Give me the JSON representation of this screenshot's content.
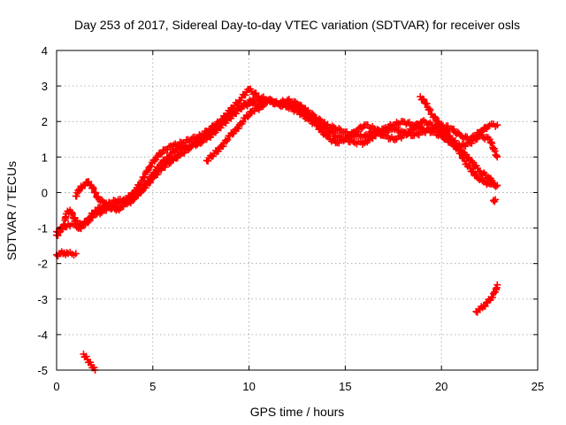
{
  "chart_data": {
    "type": "scatter",
    "title": "Day 253 of 2017, Sidereal Day-to-day VTEC variation (SDTVAR) for receiver osls",
    "xlabel": "GPS time / hours",
    "ylabel": "SDTVAR / TECUs",
    "xlim": [
      0,
      25
    ],
    "ylim": [
      -5,
      4
    ],
    "xticks": [
      "0",
      "5",
      "10",
      "15",
      "20",
      "25"
    ],
    "yticks": [
      "-5",
      "-4",
      "-3",
      "-2",
      "-1",
      "0",
      "1",
      "2",
      "3",
      "4"
    ],
    "grid": true,
    "marker": "+",
    "color": "#ff0000",
    "series": [
      {
        "name": "track-a",
        "x": [
          0.0,
          0.2,
          0.4,
          0.5,
          0.7,
          1.0,
          1.3,
          1.6,
          2.0,
          2.4,
          2.8,
          3.2,
          3.6,
          4.0,
          4.4,
          4.8,
          5.2,
          5.6,
          6.0,
          6.5,
          7.0,
          7.5,
          8.0,
          8.5,
          9.0,
          9.5,
          10.0,
          10.5,
          11.0,
          11.5,
          12.0,
          12.5,
          13.0,
          13.5,
          14.0,
          14.5,
          15.0,
          15.5,
          16.0,
          16.5,
          17.0,
          17.5,
          18.0,
          18.5,
          19.0,
          19.5,
          20.0,
          20.5,
          21.0,
          21.5,
          22.0,
          22.5,
          22.8
        ],
        "y": [
          -1.2,
          -1.1,
          -0.9,
          -0.6,
          -0.5,
          -0.8,
          -0.9,
          -0.8,
          -0.5,
          -0.4,
          -0.3,
          -0.2,
          -0.2,
          0.0,
          0.3,
          0.7,
          1.0,
          1.2,
          1.3,
          1.4,
          1.5,
          1.6,
          1.8,
          2.0,
          2.3,
          2.6,
          2.9,
          2.7,
          2.6,
          2.5,
          2.6,
          2.5,
          2.3,
          2.1,
          1.9,
          1.8,
          1.7,
          1.6,
          1.6,
          1.7,
          1.8,
          1.9,
          2.0,
          1.9,
          1.8,
          1.7,
          1.6,
          1.4,
          1.2,
          0.9,
          0.6,
          0.4,
          0.2
        ]
      },
      {
        "name": "track-b",
        "x": [
          0.0,
          0.3,
          0.6,
          0.9,
          1.2,
          1.5,
          1.8,
          2.1,
          2.5,
          2.9,
          3.3,
          3.7,
          4.1,
          4.5,
          5.0,
          5.5,
          6.0,
          6.5,
          7.0,
          7.5,
          8.0,
          8.5,
          9.0,
          9.5,
          10.0,
          10.5,
          11.0,
          11.5,
          12.0,
          12.5,
          13.0,
          13.5,
          14.0,
          14.5,
          15.0,
          15.5,
          16.0,
          16.5,
          17.0,
          17.5,
          18.0,
          18.5,
          19.0,
          19.5,
          20.0,
          20.5,
          21.0,
          21.5,
          22.0,
          22.5,
          22.9
        ],
        "y": [
          -1.1,
          -1.0,
          -0.9,
          -0.9,
          -1.0,
          -0.9,
          -0.7,
          -0.6,
          -0.5,
          -0.4,
          -0.3,
          -0.2,
          -0.1,
          0.1,
          0.4,
          0.7,
          0.9,
          1.1,
          1.3,
          1.5,
          1.7,
          2.0,
          2.2,
          2.4,
          2.5,
          2.5,
          2.6,
          2.5,
          2.5,
          2.4,
          2.2,
          2.0,
          1.8,
          1.6,
          1.5,
          1.4,
          1.4,
          1.6,
          1.7,
          1.8,
          1.7,
          1.6,
          1.7,
          1.8,
          1.9,
          1.8,
          1.6,
          1.5,
          1.7,
          1.9,
          1.9
        ]
      },
      {
        "name": "track-c",
        "x": [
          1.0,
          1.2,
          1.4,
          1.6,
          1.8,
          2.0,
          2.2,
          2.5,
          2.8,
          3.1,
          3.4,
          3.7,
          4.0,
          4.3,
          4.6,
          5.0,
          5.4,
          5.8,
          6.2,
          6.6,
          7.0,
          7.4,
          7.8,
          8.2,
          8.6,
          9.0,
          9.4,
          9.8,
          10.2,
          10.6
        ],
        "y": [
          -0.1,
          0.1,
          0.2,
          0.3,
          0.2,
          0.0,
          -0.2,
          -0.3,
          -0.4,
          -0.5,
          -0.4,
          -0.3,
          -0.2,
          0.0,
          0.2,
          0.5,
          0.8,
          1.0,
          1.2,
          1.3,
          1.3,
          1.4,
          1.5,
          1.7,
          1.9,
          2.1,
          2.3,
          2.5,
          2.6,
          2.6
        ]
      },
      {
        "name": "track-d",
        "x": [
          7.8,
          8.2,
          8.6,
          9.0,
          9.4,
          9.8,
          10.2,
          10.6,
          11.0,
          11.5,
          12.0,
          12.5,
          13.0,
          13.5,
          14.0,
          14.5,
          15.0,
          15.5,
          16.0,
          16.5,
          17.0,
          17.5,
          18.0,
          18.5,
          19.0,
          19.5,
          20.0,
          20.5,
          21.0,
          21.5,
          22.0,
          22.5,
          22.9
        ],
        "y": [
          0.9,
          1.1,
          1.3,
          1.6,
          1.8,
          2.1,
          2.3,
          2.4,
          2.6,
          2.5,
          2.4,
          2.3,
          2.1,
          1.9,
          1.6,
          1.4,
          1.5,
          1.7,
          1.9,
          1.8,
          1.6,
          1.5,
          1.6,
          1.8,
          2.0,
          1.9,
          1.7,
          1.5,
          1.3,
          1.4,
          1.6,
          1.5,
          1.0
        ]
      },
      {
        "name": "track-e",
        "x": [
          18.9,
          19.2,
          19.5,
          19.8,
          20.1,
          20.4,
          20.7,
          21.0,
          21.3,
          21.6,
          21.9,
          22.2,
          22.5,
          22.9
        ],
        "y": [
          2.7,
          2.5,
          2.2,
          2.0,
          1.8,
          1.6,
          1.3,
          1.1,
          0.8,
          0.6,
          0.4,
          0.3,
          0.25,
          0.2
        ]
      },
      {
        "name": "early-segment",
        "x": [
          0.0,
          0.2,
          0.4,
          0.6,
          0.8,
          1.0
        ],
        "y": [
          -1.75,
          -1.72,
          -1.7,
          -1.72,
          -1.73,
          -1.72
        ]
      },
      {
        "name": "low-segment-start",
        "x": [
          1.4,
          1.5,
          1.6,
          1.7,
          1.8,
          1.9,
          2.0
        ],
        "y": [
          -4.55,
          -4.62,
          -4.7,
          -4.78,
          -4.86,
          -4.93,
          -5.0
        ]
      },
      {
        "name": "low-segment-end",
        "x": [
          21.8,
          22.0,
          22.2,
          22.4,
          22.6,
          22.8,
          22.9
        ],
        "y": [
          -3.35,
          -3.28,
          -3.2,
          -3.08,
          -2.95,
          -2.8,
          -2.6
        ]
      },
      {
        "name": "isolated-point",
        "x": [
          22.7,
          22.8
        ],
        "y": [
          -0.22,
          -0.2
        ]
      }
    ]
  }
}
